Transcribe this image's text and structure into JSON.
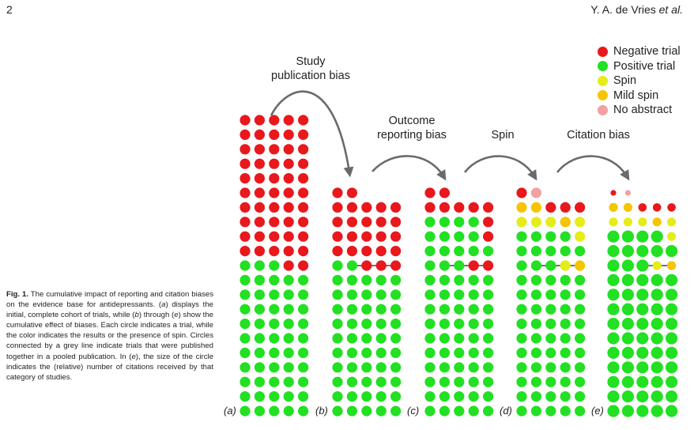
{
  "header": {
    "page_number": "2",
    "authors": "Y. A. de Vries",
    "etal": "et al."
  },
  "caption": {
    "label": "Fig. 1.",
    "parts": [
      " The cumulative impact of reporting and citation biases on the evidence base for antidepressants. (",
      "a",
      ") displays the initial, complete cohort of trials, while (",
      "b",
      ") through (",
      "e",
      ") show the cumulative effect of biases. Each circle indicates a trial, while the color indicates the results or the presence of spin. Circles connected by a grey line indicate trials that were published together in a pooled publication. In (",
      "e",
      "), the size of the circle indicates the (relative) number of citations received by that category of studies."
    ]
  },
  "legend": [
    {
      "label": "Negative trial",
      "color": "#e8181c"
    },
    {
      "label": "Positive trial",
      "color": "#22e022"
    },
    {
      "label": "Spin",
      "color": "#e6ec1a"
    },
    {
      "label": "Mild spin",
      "color": "#f6c400"
    },
    {
      "label": "No abstract",
      "color": "#f3a1a0"
    }
  ],
  "stages": [
    {
      "lines": [
        "Study",
        "publication bias"
      ]
    },
    {
      "lines": [
        "Outcome",
        "reporting bias"
      ]
    },
    {
      "lines": [
        "Spin"
      ]
    },
    {
      "lines": [
        "Citation bias"
      ]
    }
  ],
  "panels": [
    {
      "label": "(a)"
    },
    {
      "label": "(b)"
    },
    {
      "label": "(c)"
    },
    {
      "label": "(d)"
    },
    {
      "label": "(e)"
    }
  ]
}
